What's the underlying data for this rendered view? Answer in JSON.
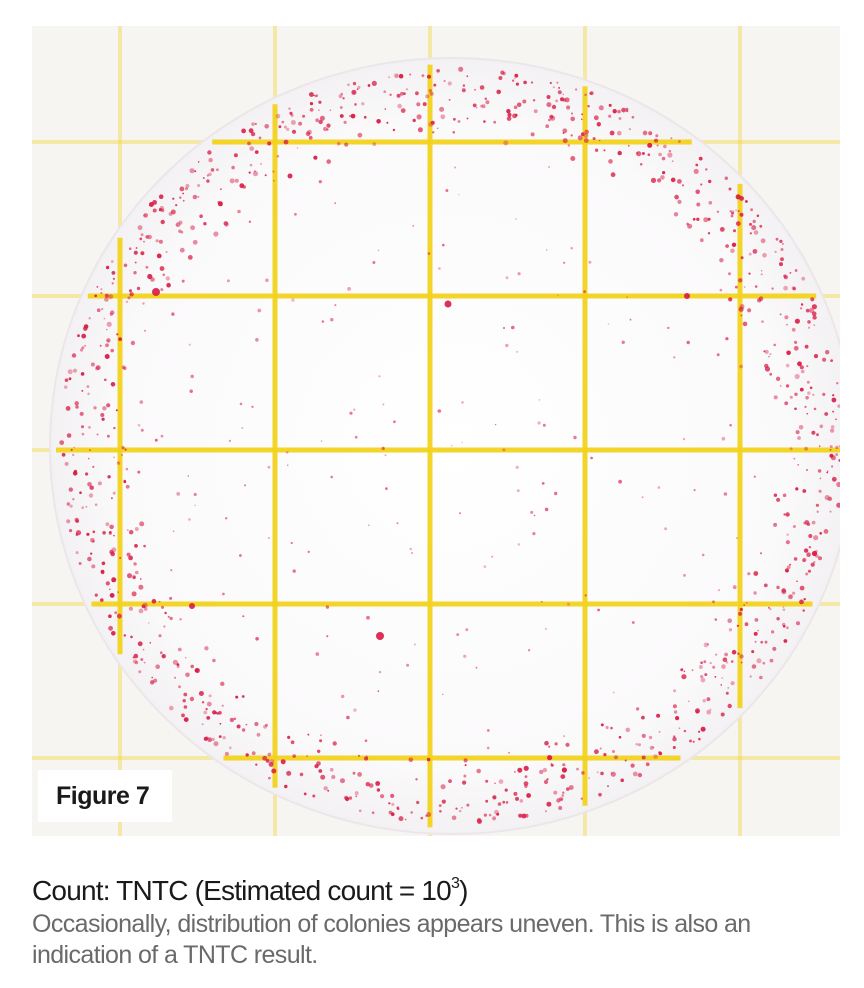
{
  "figure": {
    "label": "Figure 7"
  },
  "caption": {
    "title_prefix": "Count: TNTC (Estimated count = 10",
    "title_exponent": "3",
    "title_suffix": ")",
    "body": "Occasionally, distribution of colonies appears uneven. This is also an indication of a TNTC result."
  },
  "colors": {
    "grid_line": "#f2d21e",
    "colony": "#d81b45",
    "background": "#f6f5f2"
  }
}
